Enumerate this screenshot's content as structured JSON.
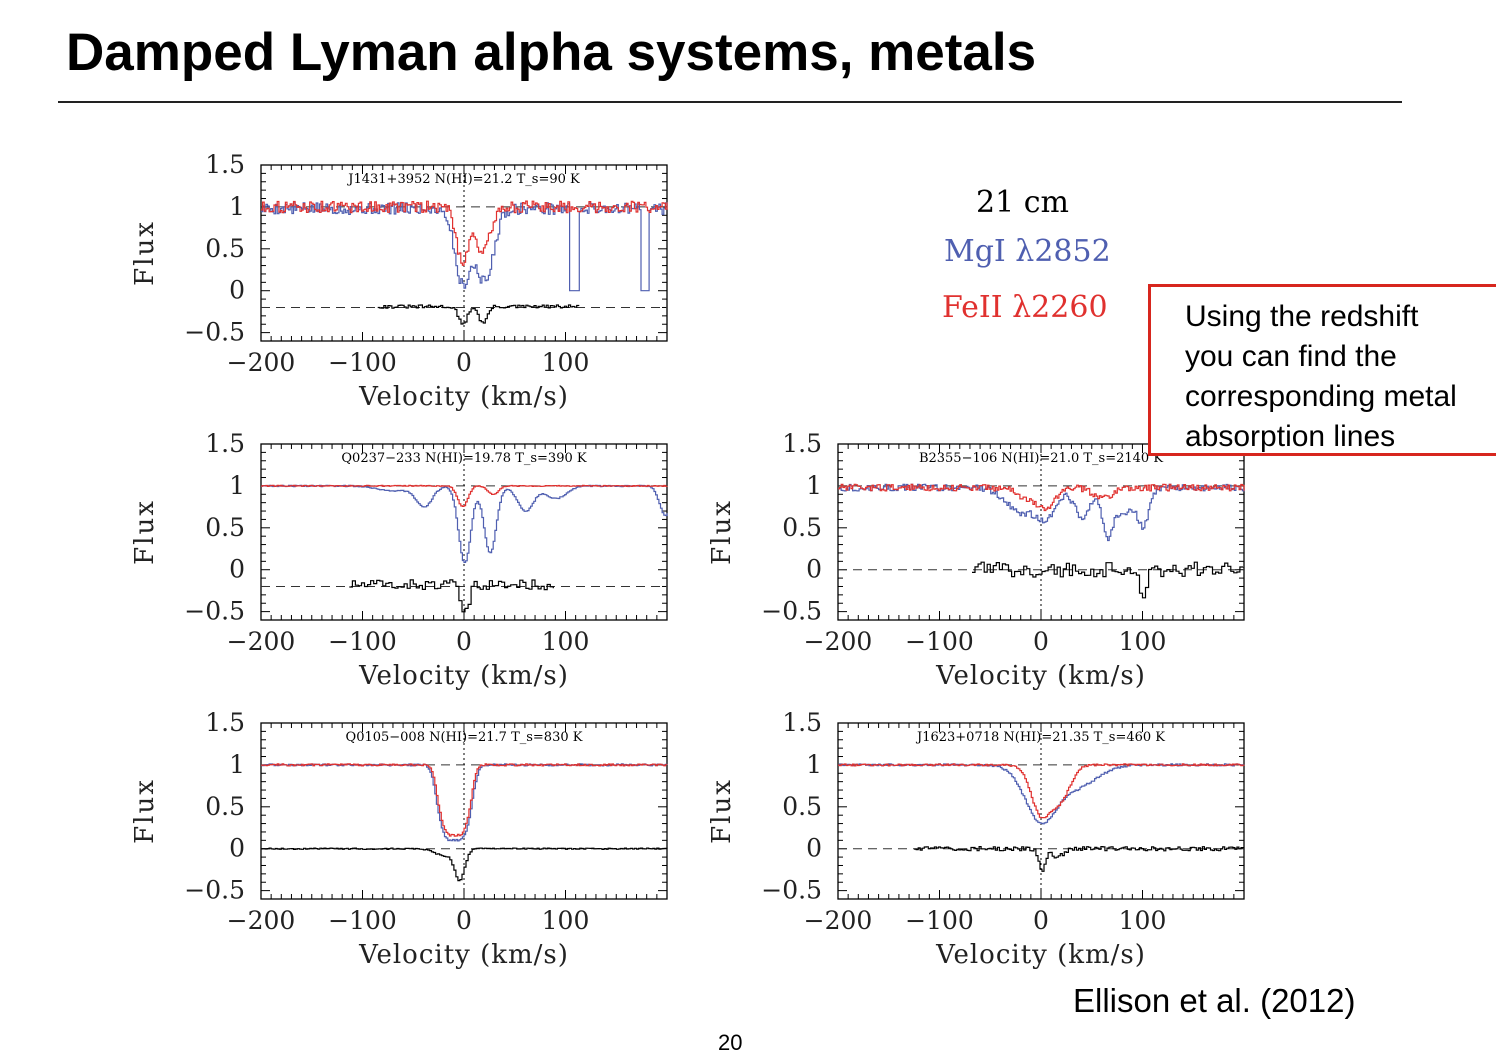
{
  "slide": {
    "title": "Damped Lyman alpha systems, metals",
    "callout_lines": [
      "Using the redshift",
      "you can find the",
      "corresponding metal",
      "absorption lines"
    ],
    "credit": "Ellison et al. (2012)",
    "page_number": "20"
  },
  "legend": [
    {
      "label": "21  cm",
      "color": "#000000"
    },
    {
      "label": "MgI   λ2852",
      "color": "#4f5fb0"
    },
    {
      "label": "FeII   λ2260",
      "color": "#e0312f"
    }
  ],
  "chart_data": [
    {
      "type": "line",
      "id": "J1431",
      "title": "J1431+3952 N(HI)=21.2 T_s=90 K",
      "xlabel": "Velocity (km/s)",
      "ylabel": "Flux",
      "xlim": [
        -200,
        200
      ],
      "ylim": [
        -0.6,
        1.5
      ],
      "xticks": [
        -200,
        -100,
        0,
        100
      ],
      "yticks": [
        1.5,
        1,
        0.5,
        0,
        -0.5
      ],
      "xtick_labels": [
        "−200",
        "−100",
        "0",
        "100"
      ],
      "ytick_labels": [
        "1.5",
        "1",
        "0.5",
        "0",
        "−0.5"
      ],
      "reference_lines": {
        "flux_1": 1,
        "offset_21cm": -0.2
      },
      "series": [
        {
          "name": "MgI λ2852",
          "color": "#4f5fb0",
          "x_range": [
            -200,
            200
          ],
          "continuum": 0.98,
          "noise": 0.07,
          "absorptions": [
            {
              "v": -2,
              "depth": 0.9,
              "width": 7
            },
            {
              "v": 20,
              "depth": 0.85,
              "width": 8
            },
            {
              "v": 9,
              "depth": 0.4,
              "width": 12
            }
          ],
          "gaps": [
            [
              103,
              112
            ],
            [
              173,
              181
            ]
          ]
        },
        {
          "name": "FeII λ2260",
          "color": "#e0312f",
          "x_range": [
            -200,
            200
          ],
          "continuum": 1.0,
          "noise": 0.07,
          "absorptions": [
            {
              "v": -2,
              "depth": 0.65,
              "width": 6
            },
            {
              "v": 18,
              "depth": 0.55,
              "width": 7
            }
          ]
        },
        {
          "name": "21 cm",
          "color": "#000000",
          "x_range": [
            -85,
            113
          ],
          "continuum": -0.19,
          "noise": 0.02,
          "absorptions": [
            {
              "v": -2,
              "depth": 0.22,
              "width": 4
            },
            {
              "v": 18,
              "depth": 0.2,
              "width": 4
            }
          ]
        }
      ]
    },
    {
      "type": "line",
      "id": "Q0237",
      "title": "Q0237−233 N(HI)=19.78 T_s=390 K",
      "xlabel": "Velocity (km/s)",
      "ylabel": "Flux",
      "xlim": [
        -200,
        200
      ],
      "ylim": [
        -0.6,
        1.5
      ],
      "xticks": [
        -200,
        -100,
        0,
        100
      ],
      "yticks": [
        1.5,
        1,
        0.5,
        0,
        -0.5
      ],
      "xtick_labels": [
        "−200",
        "−100",
        "0",
        "100"
      ],
      "ytick_labels": [
        "1.5",
        "1",
        "0.5",
        "0",
        "−0.5"
      ],
      "reference_lines": {
        "flux_1": 1,
        "offset_21cm": -0.2
      },
      "series": [
        {
          "name": "MgI λ2852",
          "color": "#4f5fb0",
          "x_range": [
            -200,
            200
          ],
          "continuum": 1.0,
          "noise": 0.008,
          "absorptions": [
            {
              "v": -40,
              "depth": 0.25,
              "width": 8
            },
            {
              "v": 0,
              "depth": 0.92,
              "width": 6
            },
            {
              "v": 25,
              "depth": 0.8,
              "width": 6
            },
            {
              "v": 60,
              "depth": 0.3,
              "width": 8
            },
            {
              "v": 90,
              "depth": 0.15,
              "width": 10
            },
            {
              "v": -70,
              "depth": 0.06,
              "width": 15
            },
            {
              "v": 198,
              "depth": 0.35,
              "width": 6
            }
          ]
        },
        {
          "name": "FeII λ2260",
          "color": "#e0312f",
          "x_range": [
            -200,
            200
          ],
          "continuum": 1.0,
          "noise": 0.006,
          "absorptions": [
            {
              "v": -2,
              "depth": 0.25,
              "width": 5
            },
            {
              "v": 28,
              "depth": 0.1,
              "width": 5
            }
          ]
        },
        {
          "name": "21 cm",
          "color": "#000000",
          "x_range": [
            -113,
            88
          ],
          "continuum": -0.18,
          "noise": 0.06,
          "absorptions": [
            {
              "v": 0,
              "depth": 0.35,
              "width": 4
            }
          ]
        }
      ]
    },
    {
      "type": "line",
      "id": "B2355",
      "title": "B2355−106 N(HI)=21.0 T_s=2140 K",
      "xlabel": "Velocity (km/s)",
      "ylabel": "Flux",
      "xlim": [
        -200,
        200
      ],
      "ylim": [
        -0.6,
        1.5
      ],
      "xticks": [
        -200,
        -100,
        0,
        100
      ],
      "yticks": [
        1.5,
        1,
        0.5,
        0,
        -0.5
      ],
      "xtick_labels": [
        "−200",
        "−100",
        "0",
        "100"
      ],
      "ytick_labels": [
        "1.5",
        "1",
        "0.5",
        "0",
        "−0.5"
      ],
      "reference_lines": {
        "flux_1": 1,
        "offset_21cm": 0
      },
      "series": [
        {
          "name": "MgI λ2852",
          "color": "#4f5fb0",
          "x_range": [
            -200,
            200
          ],
          "continuum": 0.98,
          "noise": 0.04,
          "absorptions": [
            {
              "v": -20,
              "depth": 0.3,
              "width": 15
            },
            {
              "v": 5,
              "depth": 0.35,
              "width": 10
            },
            {
              "v": 40,
              "depth": 0.35,
              "width": 8
            },
            {
              "v": 65,
              "depth": 0.6,
              "width": 5
            },
            {
              "v": 100,
              "depth": 0.45,
              "width": 6
            },
            {
              "v": 80,
              "depth": 0.3,
              "width": 10
            }
          ]
        },
        {
          "name": "FeII λ2260",
          "color": "#e0312f",
          "x_range": [
            -200,
            200
          ],
          "continuum": 0.98,
          "noise": 0.04,
          "absorptions": [
            {
              "v": -10,
              "depth": 0.15,
              "width": 12
            },
            {
              "v": 5,
              "depth": 0.2,
              "width": 8
            },
            {
              "v": 60,
              "depth": 0.12,
              "width": 10
            }
          ]
        },
        {
          "name": "21 cm",
          "color": "#000000",
          "x_range": [
            -68,
            200
          ],
          "continuum": 0.0,
          "noise": 0.09,
          "absorptions": [
            {
              "v": 100,
              "depth": 0.35,
              "width": 3
            }
          ]
        }
      ]
    },
    {
      "type": "line",
      "id": "Q0105",
      "title": "Q0105−008 N(HI)=21.7 T_s=830 K",
      "xlabel": "Velocity (km/s)",
      "ylabel": "Flux",
      "xlim": [
        -200,
        200
      ],
      "ylim": [
        -0.6,
        1.5
      ],
      "xticks": [
        -200,
        -100,
        0,
        100
      ],
      "yticks": [
        1.5,
        1,
        0.5,
        0,
        -0.5
      ],
      "xtick_labels": [
        "−200",
        "−100",
        "0",
        "100"
      ],
      "ytick_labels": [
        "1.5",
        "1",
        "0.5",
        "0",
        "−0.5"
      ],
      "reference_lines": {
        "flux_1": 1,
        "offset_21cm": 0
      },
      "series": [
        {
          "name": "MgI λ2852",
          "color": "#4f5fb0",
          "x_range": [
            -200,
            200
          ],
          "continuum": 1.0,
          "noise": 0.012,
          "absorptions": [
            {
              "v": -10,
              "depth": 0.9,
              "width": 16,
              "flat": true
            }
          ]
        },
        {
          "name": "FeII λ2260",
          "color": "#e0312f",
          "x_range": [
            -200,
            200
          ],
          "continuum": 1.0,
          "noise": 0.012,
          "absorptions": [
            {
              "v": -10,
              "depth": 0.84,
              "width": 15,
              "flat": true
            }
          ]
        },
        {
          "name": "21 cm",
          "color": "#000000",
          "x_range": [
            -200,
            200
          ],
          "continuum": 0.0,
          "noise": 0.008,
          "absorptions": [
            {
              "v": -5,
              "depth": 0.35,
              "width": 5
            },
            {
              "v": -20,
              "depth": 0.08,
              "width": 10
            }
          ]
        }
      ]
    },
    {
      "type": "line",
      "id": "J1623",
      "title": "J1623+0718 N(HI)=21.35 T_s=460 K",
      "xlabel": "Velocity (km/s)",
      "ylabel": "Flux",
      "xlim": [
        -200,
        200
      ],
      "ylim": [
        -0.6,
        1.5
      ],
      "xticks": [
        -200,
        -100,
        0,
        100
      ],
      "yticks": [
        1.5,
        1,
        0.5,
        0,
        -0.5
      ],
      "xtick_labels": [
        "−200",
        "−100",
        "0",
        "100"
      ],
      "ytick_labels": [
        "1.5",
        "1",
        "0.5",
        "0",
        "−0.5"
      ],
      "reference_lines": {
        "flux_1": 1,
        "offset_21cm": 0
      },
      "series": [
        {
          "name": "MgI λ2852",
          "color": "#4f5fb0",
          "x_range": [
            -200,
            200
          ],
          "continuum": 1.0,
          "noise": 0.012,
          "absorptions": [
            {
              "v": 0,
              "depth": 0.68,
              "width": 16
            },
            {
              "v": 35,
              "depth": 0.25,
              "width": 20
            }
          ]
        },
        {
          "name": "FeII λ2260",
          "color": "#e0312f",
          "x_range": [
            -200,
            200
          ],
          "continuum": 1.0,
          "noise": 0.012,
          "absorptions": [
            {
              "v": 0,
              "depth": 0.6,
              "width": 10
            },
            {
              "v": 18,
              "depth": 0.4,
              "width": 10
            }
          ]
        },
        {
          "name": "21 cm",
          "color": "#000000",
          "x_range": [
            -125,
            200
          ],
          "continuum": 0.0,
          "noise": 0.025,
          "absorptions": [
            {
              "v": 0,
              "depth": 0.28,
              "width": 3
            },
            {
              "v": 15,
              "depth": 0.1,
              "width": 6
            }
          ]
        }
      ]
    }
  ]
}
